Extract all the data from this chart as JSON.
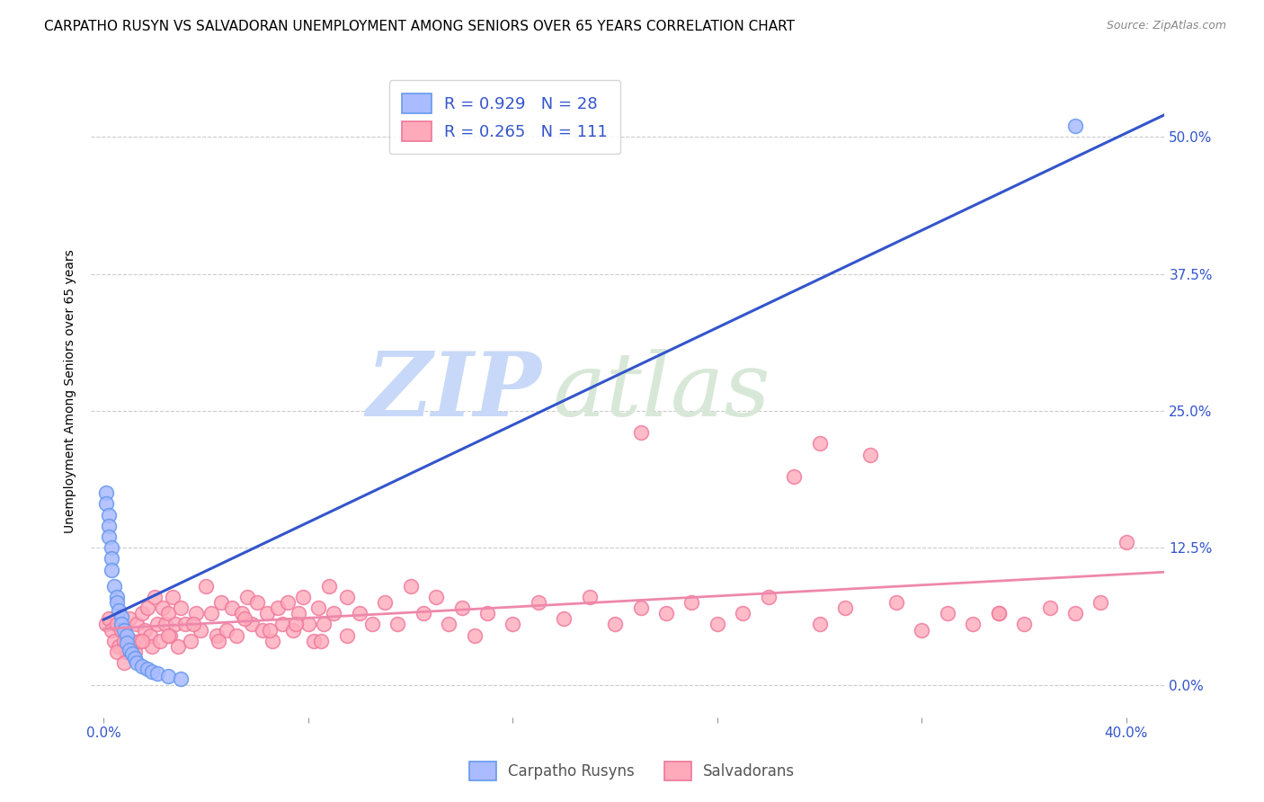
{
  "title": "CARPATHO RUSYN VS SALVADORAN UNEMPLOYMENT AMONG SENIORS OVER 65 YEARS CORRELATION CHART",
  "source": "Source: ZipAtlas.com",
  "xlabel_ticks": [
    "0.0%",
    "",
    "",
    "",
    "",
    "40.0%"
  ],
  "xlabel_vals": [
    0.0,
    0.08,
    0.16,
    0.24,
    0.32,
    0.4
  ],
  "ylabel_ticks": [
    "0.0%",
    "12.5%",
    "25.0%",
    "37.5%",
    "50.0%"
  ],
  "ylabel_vals": [
    0.0,
    0.125,
    0.25,
    0.375,
    0.5
  ],
  "ylabel_label": "Unemployment Among Seniors over 65 years",
  "xlim": [
    -0.005,
    0.415
  ],
  "ylim": [
    -0.03,
    0.565
  ],
  "watermark_zip": "ZIP",
  "watermark_atlas": "atlas",
  "legend_blue_label": "Carpatho Rusyns",
  "legend_pink_label": "Salvadorans",
  "blue_R": 0.929,
  "blue_N": 28,
  "pink_R": 0.265,
  "pink_N": 111,
  "blue_dot_color": "#aabbff",
  "blue_edge_color": "#6699ee",
  "pink_dot_color": "#ffaabb",
  "pink_edge_color": "#ee7799",
  "blue_line_color": "#3355cc",
  "pink_line_color": "#ee88aa",
  "tick_color": "#3355cc",
  "background_color": "#FFFFFF",
  "grid_color": "#CCCCCC",
  "title_fontsize": 11,
  "axis_label_fontsize": 10,
  "tick_fontsize": 11,
  "blue_scatter_x": [
    0.001,
    0.001,
    0.002,
    0.002,
    0.002,
    0.003,
    0.003,
    0.003,
    0.004,
    0.005,
    0.005,
    0.006,
    0.007,
    0.007,
    0.008,
    0.009,
    0.009,
    0.01,
    0.011,
    0.012,
    0.013,
    0.015,
    0.017,
    0.019,
    0.021,
    0.025,
    0.03,
    0.38
  ],
  "blue_scatter_y": [
    0.175,
    0.165,
    0.155,
    0.145,
    0.135,
    0.125,
    0.115,
    0.105,
    0.09,
    0.08,
    0.075,
    0.068,
    0.062,
    0.055,
    0.05,
    0.045,
    0.038,
    0.032,
    0.028,
    0.024,
    0.02,
    0.017,
    0.014,
    0.012,
    0.01,
    0.008,
    0.005,
    0.51
  ],
  "pink_scatter_x": [
    0.001,
    0.002,
    0.003,
    0.004,
    0.005,
    0.006,
    0.007,
    0.008,
    0.009,
    0.01,
    0.011,
    0.012,
    0.013,
    0.014,
    0.015,
    0.016,
    0.017,
    0.018,
    0.019,
    0.02,
    0.021,
    0.022,
    0.023,
    0.024,
    0.025,
    0.026,
    0.027,
    0.028,
    0.029,
    0.03,
    0.032,
    0.034,
    0.036,
    0.038,
    0.04,
    0.042,
    0.044,
    0.046,
    0.048,
    0.05,
    0.052,
    0.054,
    0.056,
    0.058,
    0.06,
    0.062,
    0.064,
    0.066,
    0.068,
    0.07,
    0.072,
    0.074,
    0.076,
    0.078,
    0.08,
    0.082,
    0.084,
    0.086,
    0.088,
    0.09,
    0.095,
    0.1,
    0.105,
    0.11,
    0.115,
    0.12,
    0.125,
    0.13,
    0.135,
    0.14,
    0.145,
    0.15,
    0.16,
    0.17,
    0.18,
    0.19,
    0.2,
    0.21,
    0.22,
    0.23,
    0.24,
    0.25,
    0.26,
    0.27,
    0.28,
    0.29,
    0.3,
    0.31,
    0.32,
    0.33,
    0.34,
    0.35,
    0.36,
    0.37,
    0.38,
    0.39,
    0.4,
    0.21,
    0.28,
    0.35,
    0.005,
    0.008,
    0.015,
    0.025,
    0.035,
    0.045,
    0.055,
    0.065,
    0.075,
    0.085,
    0.095
  ],
  "pink_scatter_y": [
    0.055,
    0.06,
    0.05,
    0.04,
    0.055,
    0.035,
    0.05,
    0.04,
    0.03,
    0.06,
    0.04,
    0.03,
    0.055,
    0.04,
    0.065,
    0.05,
    0.07,
    0.045,
    0.035,
    0.08,
    0.055,
    0.04,
    0.07,
    0.055,
    0.065,
    0.045,
    0.08,
    0.055,
    0.035,
    0.07,
    0.055,
    0.04,
    0.065,
    0.05,
    0.09,
    0.065,
    0.045,
    0.075,
    0.05,
    0.07,
    0.045,
    0.065,
    0.08,
    0.055,
    0.075,
    0.05,
    0.065,
    0.04,
    0.07,
    0.055,
    0.075,
    0.05,
    0.065,
    0.08,
    0.055,
    0.04,
    0.07,
    0.055,
    0.09,
    0.065,
    0.08,
    0.065,
    0.055,
    0.075,
    0.055,
    0.09,
    0.065,
    0.08,
    0.055,
    0.07,
    0.045,
    0.065,
    0.055,
    0.075,
    0.06,
    0.08,
    0.055,
    0.07,
    0.065,
    0.075,
    0.055,
    0.065,
    0.08,
    0.19,
    0.055,
    0.07,
    0.21,
    0.075,
    0.05,
    0.065,
    0.055,
    0.065,
    0.055,
    0.07,
    0.065,
    0.075,
    0.13,
    0.23,
    0.22,
    0.065,
    0.03,
    0.02,
    0.04,
    0.045,
    0.055,
    0.04,
    0.06,
    0.05,
    0.055,
    0.04,
    0.045
  ]
}
